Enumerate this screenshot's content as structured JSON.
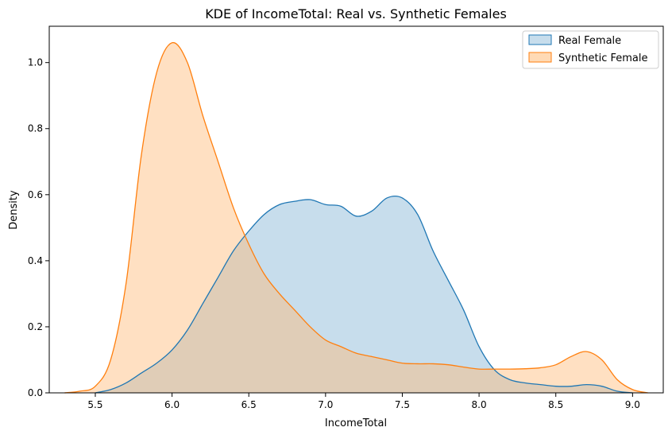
{
  "chart_data": {
    "type": "area",
    "title": "KDE of IncomeTotal: Real vs. Synthetic Females",
    "xlabel": "IncomeTotal",
    "ylabel": "Density",
    "xlim": [
      5.2,
      9.2
    ],
    "ylim": [
      0,
      1.11
    ],
    "xticks": [
      "5.5",
      "6.0",
      "6.5",
      "7.0",
      "7.5",
      "8.0",
      "8.5",
      "9.0"
    ],
    "yticks": [
      "0.0",
      "0.2",
      "0.4",
      "0.6",
      "0.8",
      "1.0"
    ],
    "legend_position": "top-right",
    "grid": false,
    "series": [
      {
        "name": "Real Female",
        "color": "#1f77b4",
        "fill": "#1f77b4",
        "x": [
          5.5,
          5.6,
          5.7,
          5.8,
          5.9,
          6.0,
          6.1,
          6.2,
          6.3,
          6.4,
          6.5,
          6.6,
          6.7,
          6.8,
          6.9,
          7.0,
          7.1,
          7.2,
          7.3,
          7.4,
          7.5,
          7.6,
          7.7,
          7.8,
          7.9,
          8.0,
          8.1,
          8.2,
          8.3,
          8.4,
          8.5,
          8.6,
          8.7,
          8.8,
          8.9,
          9.0
        ],
        "y": [
          0.0,
          0.01,
          0.03,
          0.06,
          0.09,
          0.13,
          0.19,
          0.27,
          0.35,
          0.43,
          0.49,
          0.54,
          0.57,
          0.58,
          0.585,
          0.57,
          0.565,
          0.535,
          0.55,
          0.59,
          0.59,
          0.54,
          0.43,
          0.34,
          0.25,
          0.14,
          0.07,
          0.04,
          0.03,
          0.025,
          0.02,
          0.02,
          0.025,
          0.02,
          0.005,
          0.0
        ]
      },
      {
        "name": "Synthetic Female",
        "color": "#ff7f0e",
        "fill": "#ffbb78",
        "x": [
          5.3,
          5.4,
          5.5,
          5.6,
          5.7,
          5.8,
          5.9,
          6.0,
          6.1,
          6.2,
          6.3,
          6.4,
          6.5,
          6.6,
          6.7,
          6.8,
          6.9,
          7.0,
          7.1,
          7.2,
          7.3,
          7.4,
          7.5,
          7.6,
          7.7,
          7.8,
          7.9,
          8.0,
          8.1,
          8.2,
          8.3,
          8.4,
          8.5,
          8.6,
          8.7,
          8.8,
          8.9,
          9.0,
          9.1
        ],
        "y": [
          0.0,
          0.005,
          0.02,
          0.1,
          0.33,
          0.72,
          0.97,
          1.06,
          1.0,
          0.84,
          0.7,
          0.56,
          0.45,
          0.36,
          0.3,
          0.25,
          0.2,
          0.16,
          0.14,
          0.12,
          0.11,
          0.1,
          0.09,
          0.088,
          0.088,
          0.085,
          0.078,
          0.072,
          0.072,
          0.072,
          0.073,
          0.076,
          0.085,
          0.11,
          0.125,
          0.1,
          0.04,
          0.01,
          0.0
        ]
      }
    ]
  }
}
